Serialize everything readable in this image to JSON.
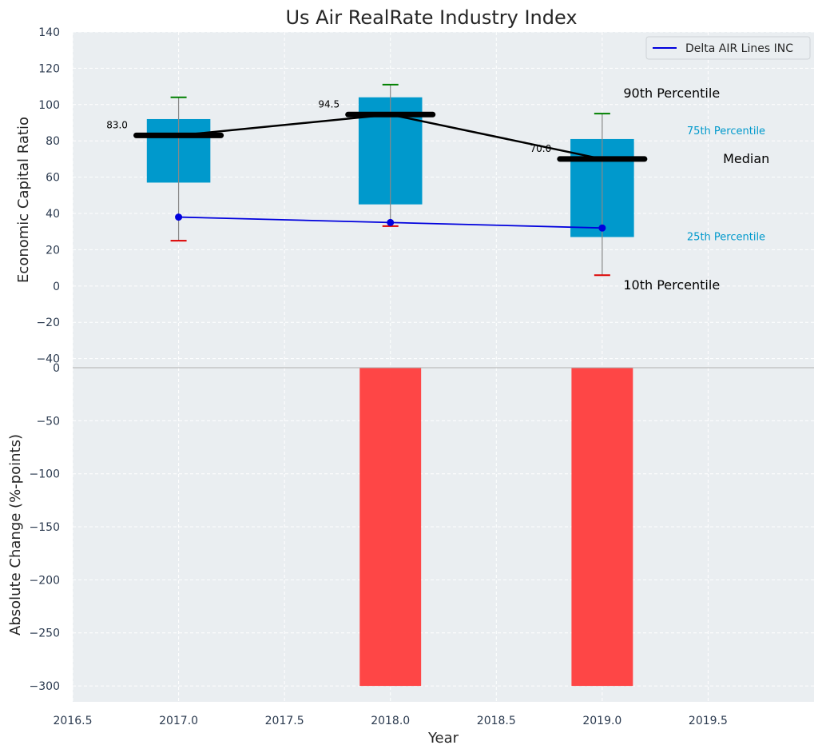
{
  "chart_data": [
    {
      "type": "box",
      "title": "Us Air RealRate Industry Index",
      "xlabel": "",
      "ylabel": "Economic Capital Ratio",
      "xlim": [
        2016.5,
        2020.0
      ],
      "ylim": [
        -45,
        140
      ],
      "x_ticks": [
        2016.5,
        2017.0,
        2017.5,
        2018.0,
        2018.5,
        2019.0,
        2019.5
      ],
      "x_tick_labels": [
        "2016.5",
        "2017.0",
        "2017.5",
        "2018.0",
        "2018.5",
        "2019.0",
        "2019.5"
      ],
      "y_ticks": [
        -40,
        -20,
        0,
        20,
        40,
        60,
        80,
        100,
        120,
        140
      ],
      "y_tick_labels": [
        "−40",
        "−20",
        "0",
        "20",
        "40",
        "60",
        "80",
        "100",
        "120",
        "140"
      ],
      "grid": true,
      "legend_position": "top-right",
      "x": [
        2017,
        2018,
        2019
      ],
      "percentiles": {
        "p10": [
          25,
          33,
          6
        ],
        "p25": [
          57,
          45,
          27
        ],
        "median": [
          83,
          94.5,
          70
        ],
        "p75": [
          92,
          104,
          81
        ],
        "p90": [
          104,
          111,
          95
        ]
      },
      "median_labels": [
        "83.0",
        "94.5",
        "70.0"
      ],
      "series": [
        {
          "name": "Delta AIR Lines INC",
          "values": [
            38,
            35,
            32
          ],
          "color": "#0000dd"
        }
      ],
      "annotations": {
        "p90": "90th Percentile",
        "p75": "75th Percentile",
        "median": "Median",
        "p25": "25th Percentile",
        "p10": "10th Percentile"
      },
      "colors": {
        "box": "#0099cc",
        "median": "#000000",
        "p90_cap": "#008000",
        "p10_cap": "#dd0000",
        "background": "#eaeef1"
      }
    },
    {
      "type": "bar",
      "xlabel": "Year",
      "ylabel": "Absolute Change (%-points)",
      "xlim": [
        2016.5,
        2020.0
      ],
      "ylim": [
        -315,
        0
      ],
      "y_ticks": [
        0,
        -50,
        -100,
        -150,
        -200,
        -250,
        -300
      ],
      "y_tick_labels": [
        "0",
        "−50",
        "−100",
        "−150",
        "−200",
        "−250",
        "−300"
      ],
      "grid": true,
      "x": [
        2018,
        2019
      ],
      "values": [
        -300,
        -300
      ],
      "color": "#ff3c3c"
    }
  ]
}
